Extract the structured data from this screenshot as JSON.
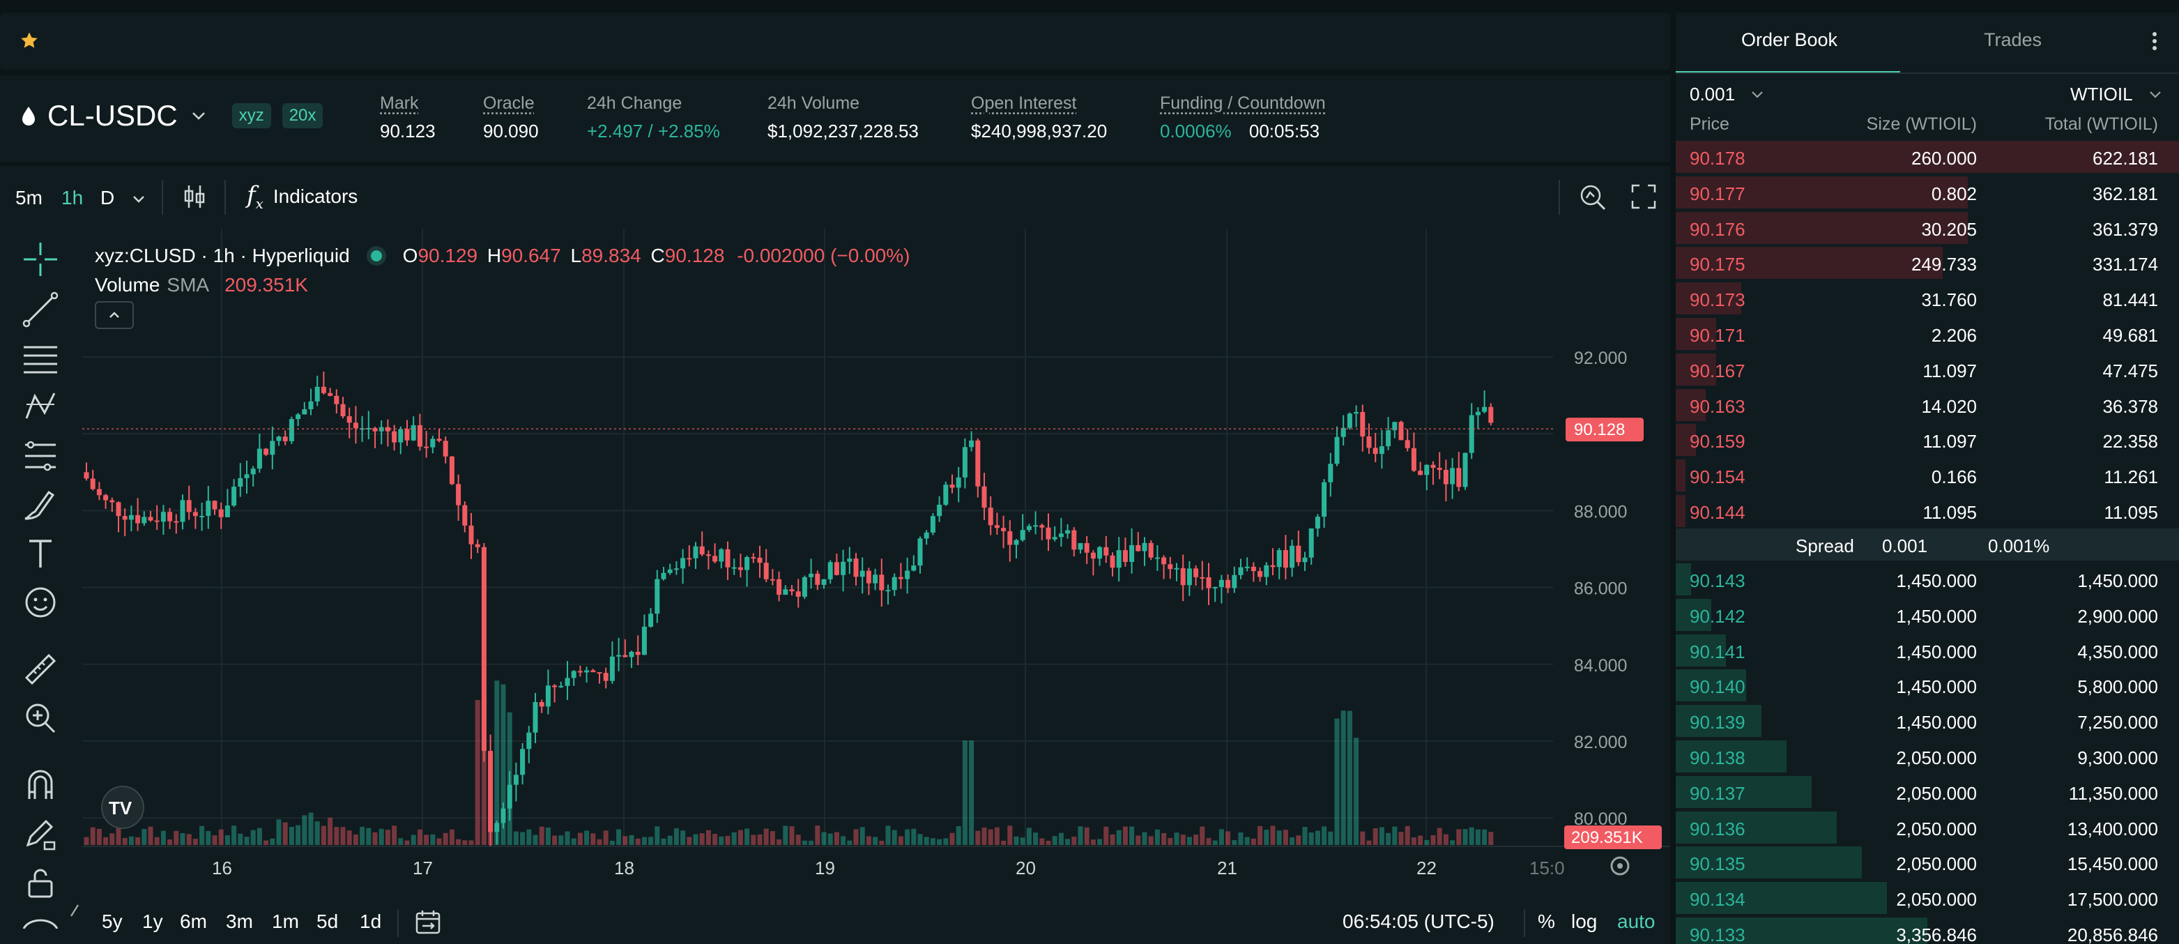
{
  "header": {
    "pair": "CL-USDC",
    "badges": [
      "xyz",
      "20x"
    ],
    "stats": {
      "mark_label": "Mark",
      "mark_value": "90.123",
      "oracle_label": "Oracle",
      "oracle_value": "90.090",
      "change_label": "24h Change",
      "change_value": "+2.497 / +2.85%",
      "volume_label": "24h Volume",
      "volume_value": "$1,092,237,228.53",
      "oi_label": "Open Interest",
      "oi_value": "$240,998,937.20",
      "funding_label": "Funding / Countdown",
      "funding_rate": "0.0006%",
      "countdown": "00:05:53"
    }
  },
  "toolbar": {
    "intervals": [
      "5m",
      "1h",
      "D"
    ],
    "active_interval": "1h",
    "indicators_label": "Indicators"
  },
  "legend": {
    "symbol": "xyz:CLUSD · 1h · Hyperliquid",
    "o_label": "O",
    "o": "90.129",
    "h_label": "H",
    "h": "90.647",
    "l_label": "L",
    "l": "89.834",
    "c_label": "C",
    "c": "90.128",
    "change": "-0.002000 (−0.00%)",
    "volume_label": "Volume",
    "sma_label": "SMA",
    "volume_value": "209.351K"
  },
  "chart": {
    "y_ticks": [
      "92.000",
      "90.000",
      "88.000",
      "86.000",
      "84.000",
      "82.000",
      "80.000"
    ],
    "x_ticks": [
      "16",
      "17",
      "18",
      "19",
      "20",
      "21",
      "22",
      "15:0"
    ],
    "last_price_tag": "90.128",
    "volume_tag": "209.351K",
    "colors": {
      "up": "#2bb59b",
      "down": "#f25b62",
      "background": "#101b1f"
    }
  },
  "chart_data": {
    "type": "candlestick",
    "y_range": [
      78.0,
      93.5
    ],
    "series": [
      {
        "name": "price",
        "points": [
          [
            "16",
            88.0,
            89.6,
            87.8,
            89.2
          ],
          [
            "16.5",
            89.2,
            91.9,
            88.9,
            90.0
          ],
          [
            "17",
            90.0,
            90.3,
            87.5,
            87.6
          ],
          [
            "17.25",
            87.6,
            88.0,
            79.2,
            80.3
          ],
          [
            "17.5",
            80.3,
            84.0,
            80.0,
            83.8
          ],
          [
            "18",
            83.8,
            87.0,
            83.5,
            86.9
          ],
          [
            "18.5",
            86.9,
            87.1,
            85.4,
            86.0
          ],
          [
            "19",
            86.0,
            87.0,
            85.7,
            86.3
          ],
          [
            "19.5",
            86.3,
            90.1,
            85.8,
            89.9
          ],
          [
            "19.75",
            89.9,
            90.0,
            86.7,
            87.3
          ],
          [
            "20",
            87.3,
            87.8,
            86.0,
            86.5
          ],
          [
            "20.5",
            86.5,
            87.0,
            85.8,
            86.1
          ],
          [
            "21",
            86.1,
            87.4,
            85.9,
            87.2
          ],
          [
            "21.5",
            87.2,
            92.2,
            87.0,
            90.6
          ],
          [
            "21.75",
            90.6,
            91.2,
            88.0,
            89.0
          ],
          [
            "22",
            89.0,
            90.9,
            87.6,
            90.1
          ]
        ]
      }
    ],
    "last_price": 90.128,
    "volume_last": "209.351K"
  },
  "bottom": {
    "ranges": [
      "5y",
      "1y",
      "6m",
      "3m",
      "1m",
      "5d",
      "1d"
    ],
    "time": "06:54:05 (UTC-5)",
    "pct": "%",
    "log": "log",
    "auto": "auto"
  },
  "orderbook": {
    "tabs": [
      "Order Book",
      "Trades"
    ],
    "tick": "0.001",
    "unit": "WTIOIL",
    "headers": [
      "Price",
      "Size (WTIOIL)",
      "Total (WTIOIL)"
    ],
    "asks": [
      [
        "90.178",
        "260.000",
        "622.181"
      ],
      [
        "90.177",
        "0.802",
        "362.181"
      ],
      [
        "90.176",
        "30.205",
        "361.379"
      ],
      [
        "90.175",
        "249.733",
        "331.174"
      ],
      [
        "90.173",
        "31.760",
        "81.441"
      ],
      [
        "90.171",
        "2.206",
        "49.681"
      ],
      [
        "90.167",
        "11.097",
        "47.475"
      ],
      [
        "90.163",
        "14.020",
        "36.378"
      ],
      [
        "90.159",
        "11.097",
        "22.358"
      ],
      [
        "90.154",
        "0.166",
        "11.261"
      ],
      [
        "90.144",
        "11.095",
        "11.095"
      ]
    ],
    "ask_depth": [
      1.0,
      0.58,
      0.58,
      0.53,
      0.13,
      0.08,
      0.08,
      0.06,
      0.04,
      0.02,
      0.02
    ],
    "spread_label": "Spread",
    "spread_value": "0.001",
    "spread_pct": "0.001%",
    "bids": [
      [
        "90.143",
        "1,450.000",
        "1,450.000"
      ],
      [
        "90.142",
        "1,450.000",
        "2,900.000"
      ],
      [
        "90.141",
        "1,450.000",
        "4,350.000"
      ],
      [
        "90.140",
        "1,450.000",
        "5,800.000"
      ],
      [
        "90.139",
        "1,450.000",
        "7,250.000"
      ],
      [
        "90.138",
        "2,050.000",
        "9,300.000"
      ],
      [
        "90.137",
        "2,050.000",
        "11,350.000"
      ],
      [
        "90.136",
        "2,050.000",
        "13,400.000"
      ],
      [
        "90.135",
        "2,050.000",
        "15,450.000"
      ],
      [
        "90.134",
        "2,050.000",
        "17,500.000"
      ],
      [
        "90.133",
        "3,356.846",
        "20,856.846"
      ]
    ],
    "bid_depth": [
      0.03,
      0.07,
      0.1,
      0.14,
      0.17,
      0.22,
      0.27,
      0.32,
      0.37,
      0.42,
      0.5
    ]
  }
}
